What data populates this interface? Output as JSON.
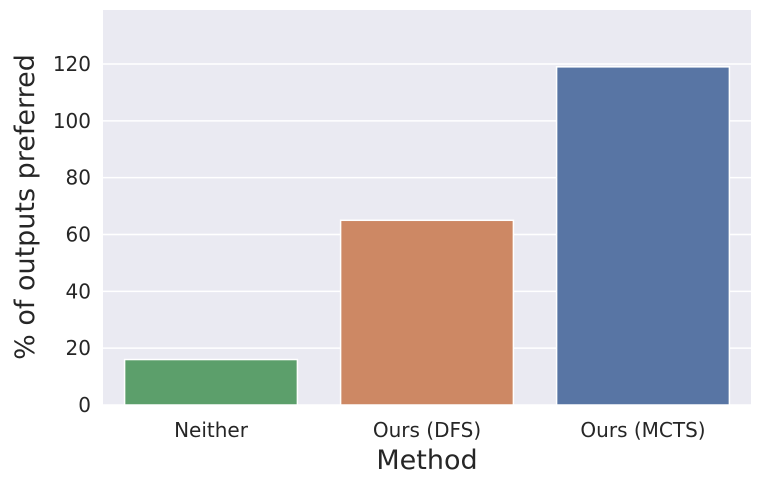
{
  "chart_data": {
    "type": "bar",
    "categories": [
      "Neither",
      "Ours (DFS)",
      "Ours (MCTS)"
    ],
    "values": [
      16,
      65,
      119
    ],
    "xlabel": "Method",
    "ylabel": "% of outputs preferred",
    "ylim": [
      0,
      139
    ],
    "yticks": [
      0,
      20,
      40,
      60,
      80,
      100,
      120
    ],
    "grid": true,
    "colors": [
      "#5c9f6b",
      "#cd8864",
      "#5875a4"
    ],
    "background": "#eaeaf2"
  }
}
